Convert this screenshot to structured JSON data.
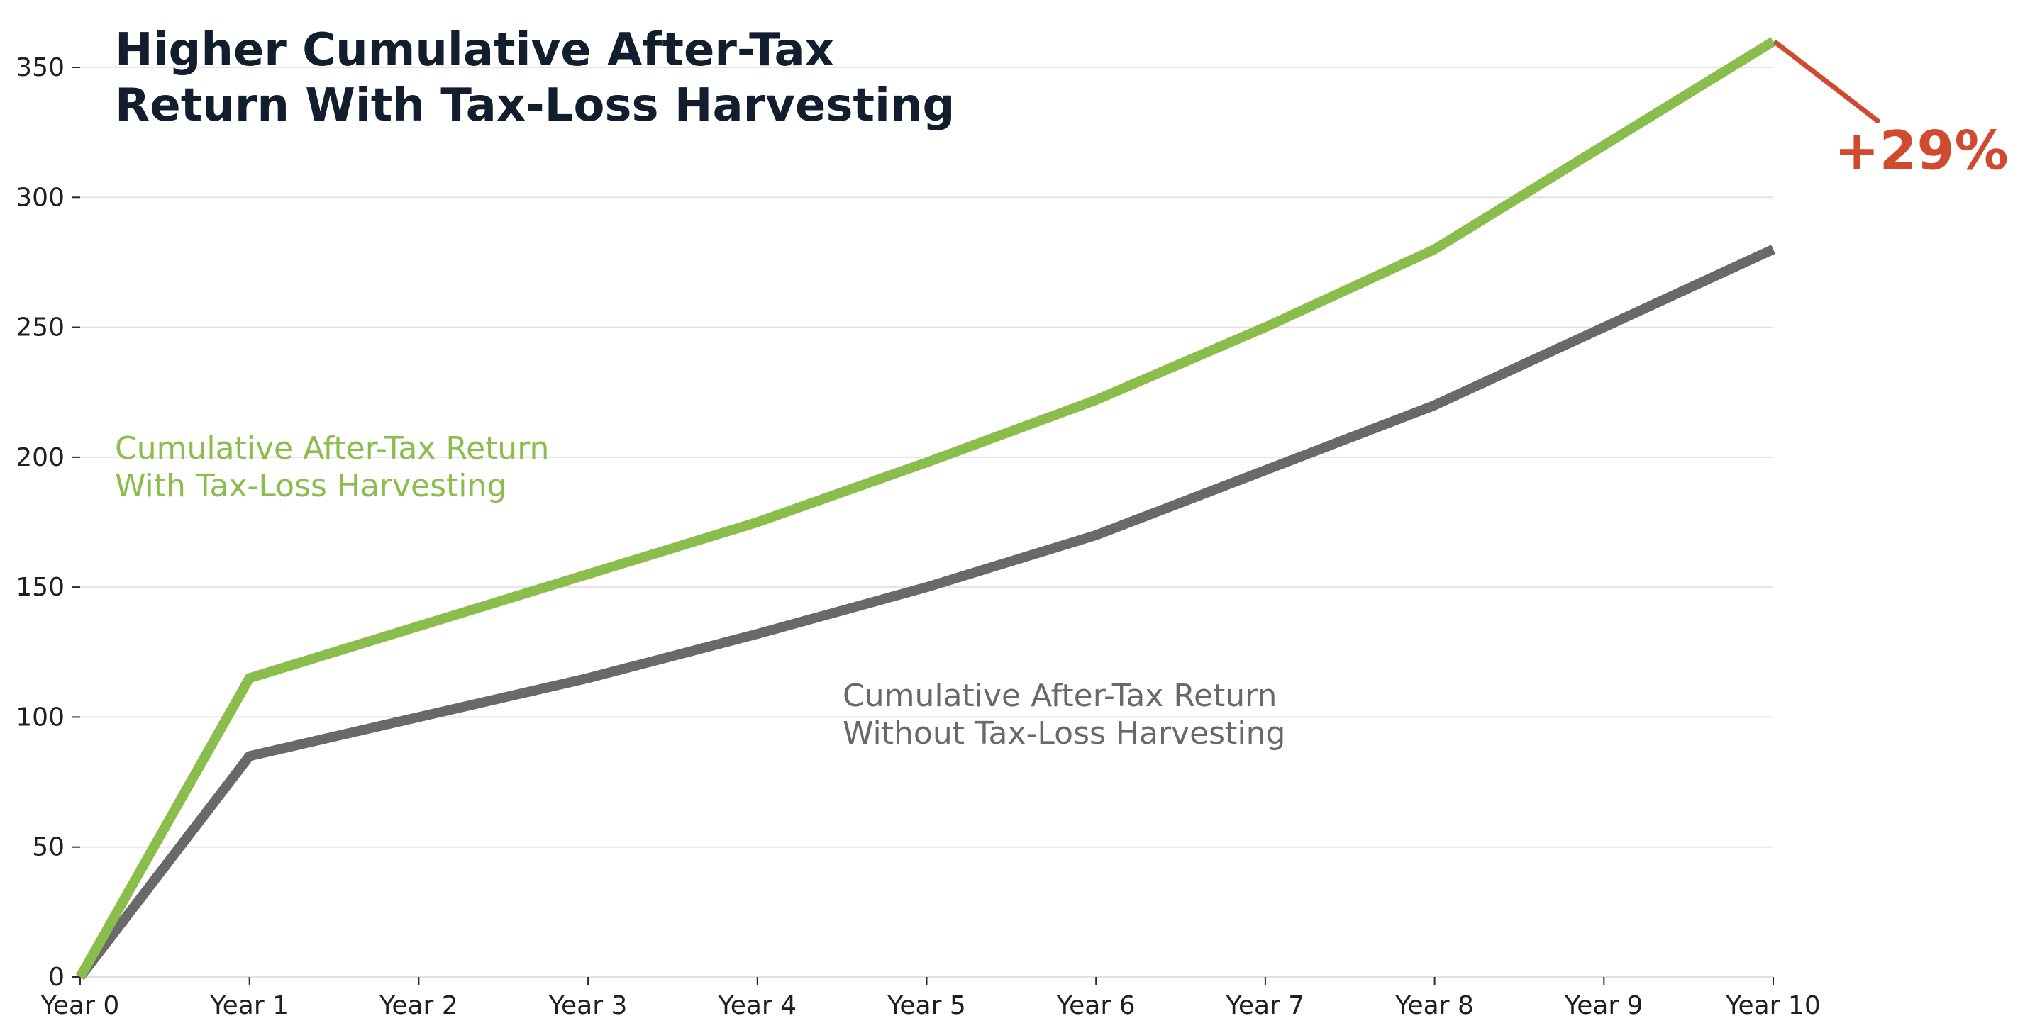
{
  "chart_data": {
    "type": "line",
    "title_lines": [
      "Higher Cumulative After-Tax",
      "Return With Tax-Loss Harvesting"
    ],
    "categories": [
      "Year 0",
      "Year 1",
      "Year 2",
      "Year 3",
      "Year 4",
      "Year 5",
      "Year 6",
      "Year 7",
      "Year 8",
      "Year 9",
      "Year 10"
    ],
    "yticks": [
      0,
      50,
      100,
      150,
      200,
      250,
      300,
      350
    ],
    "ylim": [
      0,
      350
    ],
    "grid": "horizontal",
    "legend": "none",
    "series": [
      {
        "name_lines": [
          "Cumulative After-Tax Return",
          "With Tax-Loss Harvesting"
        ],
        "color": "#8bbd4d",
        "values": [
          0,
          115,
          135,
          155,
          175,
          198,
          222,
          250,
          280,
          320,
          360
        ]
      },
      {
        "name_lines": [
          "Cumulative After-Tax Return",
          "Without Tax-Loss Harvesting"
        ],
        "color": "#696969",
        "values": [
          0,
          85,
          100,
          115,
          132,
          150,
          170,
          195,
          220,
          250,
          280
        ]
      }
    ],
    "annotation": {
      "text": "+29%",
      "color": "#d04a30"
    },
    "colors": {
      "grid": "#e3e3e3",
      "axis": "#2a2a2a",
      "title": "#121e2e",
      "tick_text": "#1f1f1f"
    }
  }
}
